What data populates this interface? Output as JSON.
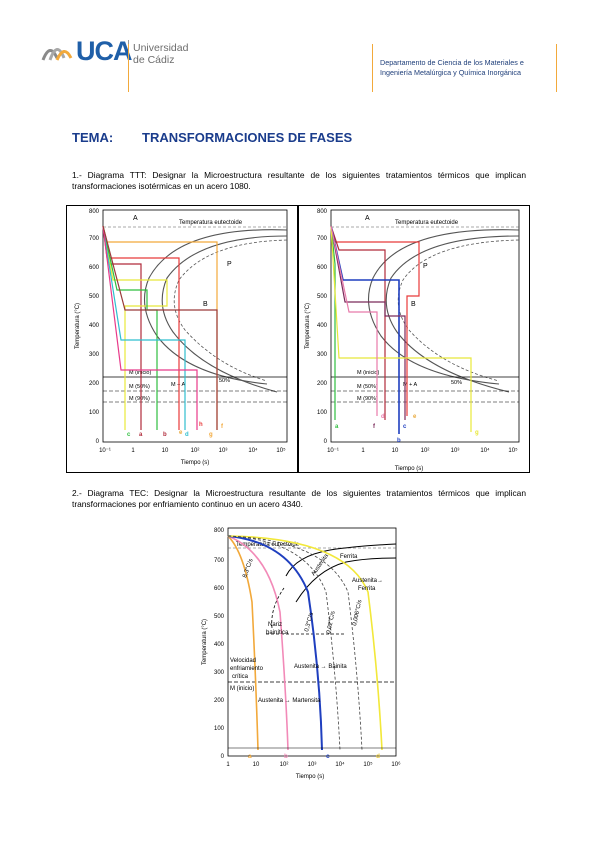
{
  "header": {
    "logo_main": "UCA",
    "logo_line1": "Universidad",
    "logo_line2": "de Cádiz",
    "dept_line1": "Departamento de Ciencia de los Materiales e",
    "dept_line2": "Ingeniería Metalúrgica y Química Inorgánica",
    "accent": "#f2a93b"
  },
  "tema": {
    "label": "TEMA:",
    "title": "TRANSFORMACIONES DE FASES"
  },
  "section1": {
    "text": "1.- Diagrama TTT: Designar la Microestructura resultante de los siguientes tratamientos térmicos que implican transformaciones isotérmicas en un acero 1080."
  },
  "section2": {
    "text": "2.- Diagrama TEC: Designar la Microestructura resultante de los siguientes tratamientos térmicos que implican transformaciones por enfriamiento continuo en un acero 4340."
  },
  "ttt": {
    "ylabel": "Temperatura (°C)",
    "xlabel": "Tiempo (s)",
    "eutectoid": "Temperatura eutectoide",
    "region_A": "A",
    "region_P": "P",
    "region_B": "B",
    "ms": "M (inicio)",
    "m50": "M (50%)",
    "m90": "M (90%)",
    "ma": "M + A",
    "pct50": "50%",
    "yticks": [
      "0",
      "100",
      "200",
      "300",
      "400",
      "500",
      "600",
      "700",
      "800"
    ],
    "xticks": [
      "10⁻¹",
      "1",
      "10",
      "10²",
      "10³",
      "10⁴",
      "10⁵"
    ],
    "labels_left": [
      "a",
      "b",
      "c",
      "d",
      "e",
      "f",
      "g",
      "h"
    ],
    "labels_right": [
      "a",
      "b",
      "c",
      "d",
      "e",
      "f",
      "g"
    ]
  },
  "tec": {
    "ylabel": "Temperatura (°C)",
    "xlabel": "Tiempo (s)",
    "eutectoid": "Temperatura eutectoide",
    "ferrita": "Ferrita",
    "austenita": "Austenita",
    "aust_ferrita_1": "Austenita→",
    "aust_ferrita_2": "Ferrita",
    "nariz_1": "Nariz",
    "nariz_2": "bainítica",
    "vel_1": "Velocidad",
    "vel_2": "enfriamiento",
    "vel_3": "crítica",
    "aust_bain": "Austenita → Bainita",
    "ms": "M (inicio)",
    "aust_mart": "Austenita → Martensita",
    "rate1": "8,3°C/s",
    "rate2": "0,3°C/s",
    "rate3": "0,02°C/s",
    "rate4": "0,006°C/s",
    "yticks": [
      "0",
      "100",
      "200",
      "300",
      "400",
      "500",
      "600",
      "700",
      "800"
    ],
    "xticks": [
      "1",
      "10",
      "10²",
      "10³",
      "10⁴",
      "10⁵",
      "10⁶"
    ],
    "labels": [
      "a",
      "b",
      "c",
      "d"
    ]
  }
}
